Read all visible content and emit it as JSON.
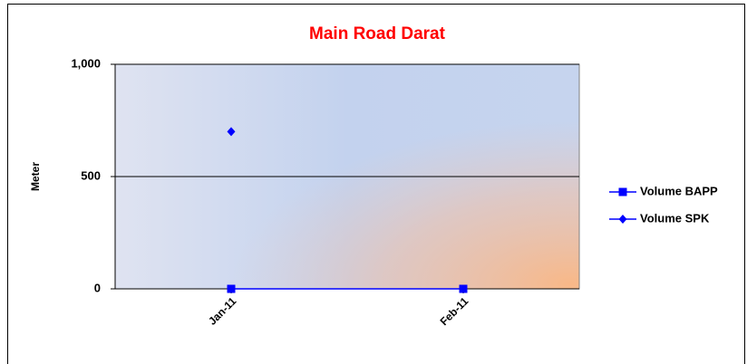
{
  "chart_data": {
    "type": "line",
    "title": "Main Road Darat",
    "y_label": "Meter",
    "categories": [
      "Jan-11",
      "Feb-11"
    ],
    "series": [
      {
        "name": "Volume BAPP",
        "color": "#0000ff",
        "marker": "square",
        "values": [
          0,
          0
        ]
      },
      {
        "name": "Volume SPK",
        "color": "#0000ff",
        "marker": "diamond",
        "values": [
          700,
          null
        ]
      }
    ],
    "ylim": [
      0,
      1000
    ],
    "yticks": [
      0,
      500,
      {
        "value": 1000,
        "label": "1,000"
      }
    ],
    "grid": true,
    "legend": "right"
  }
}
